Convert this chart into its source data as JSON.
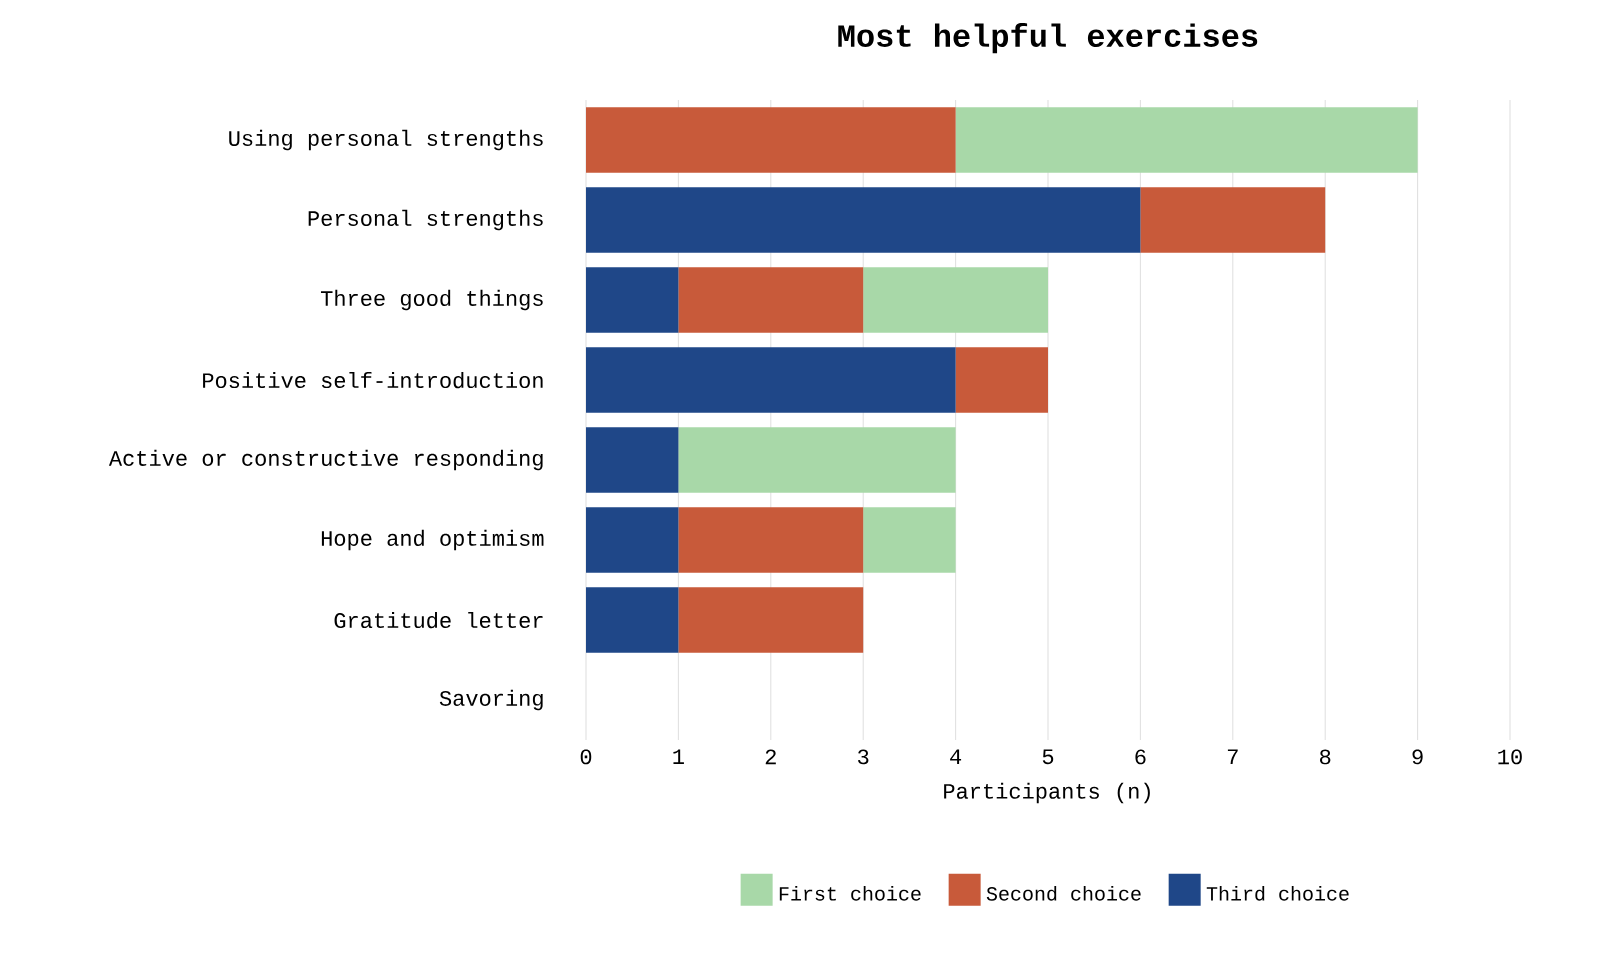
{
  "chart_data": {
    "type": "bar",
    "title": "Most helpful exercises",
    "xlabel": "Participants (n)",
    "orientation": "horizontal",
    "stacked": true,
    "categories": [
      "Using personal strengths",
      "Personal strengths",
      "Three good things",
      "Positive self-introduction",
      "Active or constructive responding",
      "Hope and optimism",
      "Gratitude letter",
      "Savoring"
    ],
    "series": [
      {
        "name": "Third choice",
        "color": "#1f4788",
        "values": [
          0,
          6,
          1,
          4,
          1,
          1,
          1,
          0
        ]
      },
      {
        "name": "Second choice",
        "color": "#c85a3a",
        "values": [
          4,
          2,
          2,
          1,
          0,
          2,
          2,
          0
        ]
      },
      {
        "name": "First choice",
        "color": "#a8d8a8",
        "values": [
          5,
          0,
          2,
          0,
          3,
          1,
          0,
          0
        ]
      }
    ],
    "xlim": [
      0,
      10
    ],
    "xticks": [
      0,
      1,
      2,
      3,
      4,
      5,
      6,
      7,
      8,
      9,
      10
    ],
    "grid": "x",
    "legend": "bottom"
  }
}
